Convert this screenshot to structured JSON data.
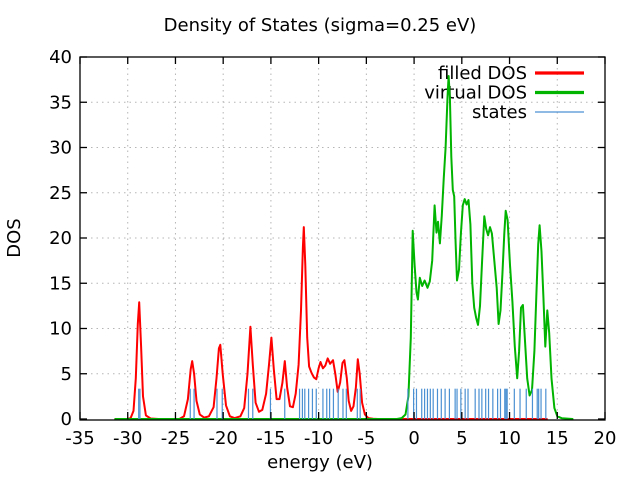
{
  "chart_data": {
    "type": "line",
    "title": "Density of States (sigma=0.25 eV)",
    "xlabel": "energy (eV)",
    "ylabel": "DOS",
    "xlim": [
      -35,
      20
    ],
    "ylim": [
      0,
      40
    ],
    "xticks": [
      -35,
      -30,
      -25,
      -20,
      -15,
      -10,
      -5,
      0,
      5,
      10,
      15,
      20
    ],
    "yticks": [
      0,
      5,
      10,
      15,
      20,
      25,
      30,
      35,
      40
    ],
    "grid": true,
    "grid_color": "#b5b5b5",
    "axis_color": "#000000",
    "background": "#ffffff",
    "legend_position": "top-right-inside",
    "series": [
      {
        "name": "filled DOS",
        "color": "#ff0000",
        "style": "line",
        "line_width": 2,
        "points": [
          [
            -31.3,
            0
          ],
          [
            -30.0,
            0
          ],
          [
            -29.7,
            0.1
          ],
          [
            -29.4,
            0.9
          ],
          [
            -29.15,
            4.5
          ],
          [
            -28.95,
            10.5
          ],
          [
            -28.8,
            12.9
          ],
          [
            -28.6,
            8
          ],
          [
            -28.4,
            2.5
          ],
          [
            -28.1,
            0.4
          ],
          [
            -27.6,
            0.05
          ],
          [
            -26.8,
            0
          ],
          [
            -24.6,
            0
          ],
          [
            -24.1,
            0.3
          ],
          [
            -23.7,
            2.2
          ],
          [
            -23.4,
            5.5
          ],
          [
            -23.25,
            6.4
          ],
          [
            -23.05,
            5
          ],
          [
            -22.8,
            2
          ],
          [
            -22.45,
            0.5
          ],
          [
            -22.0,
            0.15
          ],
          [
            -21.5,
            0.3
          ],
          [
            -21.0,
            1.3
          ],
          [
            -20.7,
            4.5
          ],
          [
            -20.45,
            7.8
          ],
          [
            -20.3,
            8.2
          ],
          [
            -20.05,
            5
          ],
          [
            -19.7,
            1.5
          ],
          [
            -19.3,
            0.3
          ],
          [
            -18.8,
            0.1
          ],
          [
            -18.2,
            0.3
          ],
          [
            -17.8,
            1.2
          ],
          [
            -17.45,
            5
          ],
          [
            -17.15,
            10.2
          ],
          [
            -16.9,
            6
          ],
          [
            -16.6,
            1.8
          ],
          [
            -16.25,
            0.8
          ],
          [
            -15.9,
            1
          ],
          [
            -15.5,
            2.8
          ],
          [
            -15.2,
            6
          ],
          [
            -14.95,
            9.0
          ],
          [
            -14.7,
            5.5
          ],
          [
            -14.4,
            2.2
          ],
          [
            -14.1,
            2.2
          ],
          [
            -13.8,
            4
          ],
          [
            -13.55,
            6.4
          ],
          [
            -13.3,
            3.5
          ],
          [
            -13.0,
            1.4
          ],
          [
            -12.7,
            1.3
          ],
          [
            -12.4,
            2.8
          ],
          [
            -12.1,
            6
          ],
          [
            -11.85,
            12
          ],
          [
            -11.65,
            19
          ],
          [
            -11.55,
            21.2
          ],
          [
            -11.4,
            17
          ],
          [
            -11.2,
            9
          ],
          [
            -11.0,
            5.8
          ],
          [
            -10.75,
            5.1
          ],
          [
            -10.5,
            4.6
          ],
          [
            -10.25,
            4.4
          ],
          [
            -10.0,
            5.6
          ],
          [
            -9.8,
            6.3
          ],
          [
            -9.55,
            5.6
          ],
          [
            -9.3,
            5.9
          ],
          [
            -9.05,
            6.7
          ],
          [
            -8.8,
            6.1
          ],
          [
            -8.5,
            6.5
          ],
          [
            -8.25,
            5
          ],
          [
            -8.0,
            3
          ],
          [
            -7.75,
            4
          ],
          [
            -7.5,
            6.2
          ],
          [
            -7.3,
            6.5
          ],
          [
            -7.05,
            4.5
          ],
          [
            -6.85,
            2
          ],
          [
            -6.6,
            0.9
          ],
          [
            -6.35,
            1.4
          ],
          [
            -6.1,
            3.5
          ],
          [
            -5.9,
            6.6
          ],
          [
            -5.7,
            5
          ],
          [
            -5.45,
            1.8
          ],
          [
            -5.15,
            0.5
          ],
          [
            -4.8,
            0.1
          ],
          [
            -4.3,
            0.02
          ],
          [
            -3.8,
            0
          ],
          [
            13.9,
            0
          ]
        ]
      },
      {
        "name": "virtual DOS",
        "color": "#00b400",
        "style": "line",
        "line_width": 2,
        "points": [
          [
            -31.3,
            0
          ],
          [
            -1.8,
            0
          ],
          [
            -1.3,
            0.1
          ],
          [
            -0.9,
            0.5
          ],
          [
            -0.6,
            2.5
          ],
          [
            -0.35,
            9
          ],
          [
            -0.15,
            20.8
          ],
          [
            0.05,
            17
          ],
          [
            0.25,
            14
          ],
          [
            0.4,
            13.2
          ],
          [
            0.6,
            15.6
          ],
          [
            0.85,
            14.7
          ],
          [
            1.1,
            15.3
          ],
          [
            1.4,
            14.5
          ],
          [
            1.65,
            15.2
          ],
          [
            1.9,
            17.5
          ],
          [
            2.15,
            23.6
          ],
          [
            2.35,
            20.6
          ],
          [
            2.5,
            21.8
          ],
          [
            2.7,
            19.4
          ],
          [
            2.9,
            22.5
          ],
          [
            3.1,
            26.5
          ],
          [
            3.3,
            30
          ],
          [
            3.5,
            35.5
          ],
          [
            3.62,
            37.9
          ],
          [
            3.75,
            35.5
          ],
          [
            3.9,
            29
          ],
          [
            4.05,
            25.3
          ],
          [
            4.2,
            24.6
          ],
          [
            4.35,
            19.5
          ],
          [
            4.5,
            15.3
          ],
          [
            4.7,
            16.5
          ],
          [
            4.9,
            20.5
          ],
          [
            5.1,
            23.6
          ],
          [
            5.3,
            24.3
          ],
          [
            5.5,
            23.7
          ],
          [
            5.7,
            24.2
          ],
          [
            5.9,
            21.5
          ],
          [
            6.1,
            15
          ],
          [
            6.3,
            12.3
          ],
          [
            6.5,
            11.2
          ],
          [
            6.7,
            10.4
          ],
          [
            6.9,
            12.5
          ],
          [
            7.1,
            17
          ],
          [
            7.35,
            22.4
          ],
          [
            7.55,
            21
          ],
          [
            7.75,
            20.3
          ],
          [
            7.95,
            21.2
          ],
          [
            8.15,
            20.5
          ],
          [
            8.4,
            17.5
          ],
          [
            8.65,
            14.5
          ],
          [
            8.85,
            10.5
          ],
          [
            9.05,
            12
          ],
          [
            9.25,
            16
          ],
          [
            9.45,
            20.5
          ],
          [
            9.6,
            23
          ],
          [
            9.8,
            22
          ],
          [
            10.05,
            17
          ],
          [
            10.3,
            13
          ],
          [
            10.55,
            8
          ],
          [
            10.8,
            4.5
          ],
          [
            11.0,
            7.5
          ],
          [
            11.2,
            12.3
          ],
          [
            11.4,
            12.6
          ],
          [
            11.6,
            9
          ],
          [
            11.85,
            4.5
          ],
          [
            12.1,
            2.6
          ],
          [
            12.35,
            3.2
          ],
          [
            12.6,
            7.5
          ],
          [
            12.8,
            13.5
          ],
          [
            13.0,
            19.3
          ],
          [
            13.15,
            21.4
          ],
          [
            13.35,
            18.5
          ],
          [
            13.55,
            13.5
          ],
          [
            13.75,
            8
          ],
          [
            13.95,
            12
          ],
          [
            14.15,
            9.5
          ],
          [
            14.4,
            4.5
          ],
          [
            14.7,
            1.2
          ],
          [
            15.0,
            0.3
          ],
          [
            15.5,
            0.08
          ],
          [
            16.6,
            0
          ]
        ]
      },
      {
        "name": "states",
        "color": "#4a90d2",
        "style": "impulses",
        "line_width": 1.2,
        "height": 3.35,
        "x": [
          -28.85,
          -28.72,
          -23.45,
          -23.05,
          -20.65,
          -20.1,
          -17.35,
          -16.9,
          -15.05,
          -13.55,
          -12.0,
          -11.7,
          -11.45,
          -11.05,
          -10.65,
          -10.25,
          -9.55,
          -9.15,
          -8.85,
          -8.45,
          -7.95,
          -7.45,
          -7.1,
          -5.95,
          -5.65,
          -0.65,
          -0.05,
          0.25,
          0.8,
          1.1,
          1.4,
          1.7,
          2.0,
          2.45,
          2.85,
          3.25,
          3.7,
          4.3,
          4.5,
          4.9,
          5.35,
          5.65,
          6.4,
          6.8,
          7.1,
          7.5,
          7.8,
          8.25,
          8.75,
          9.05,
          9.5,
          9.62,
          9.75,
          10.5,
          11.1,
          11.75,
          12.4,
          12.9,
          13.05,
          13.3,
          13.8
        ]
      }
    ]
  }
}
